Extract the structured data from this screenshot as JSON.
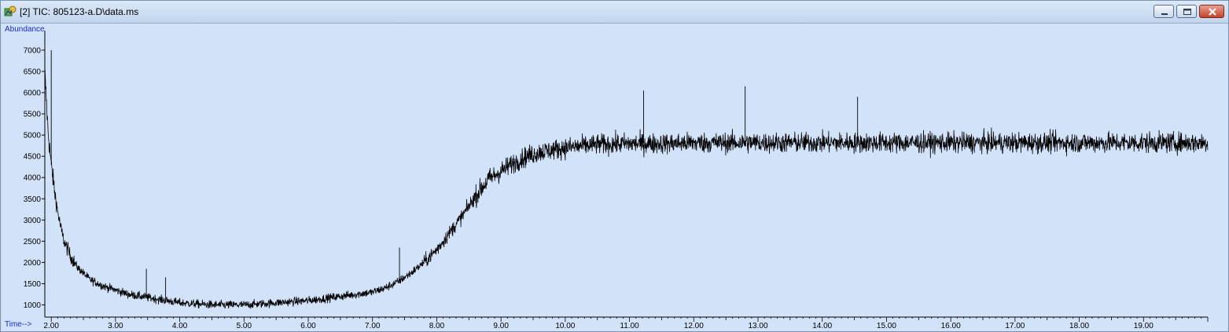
{
  "window": {
    "title": "[2] TIC: 805123-a.D\\data.ms",
    "icon": "chromatogram-icon",
    "controls": {
      "minimize": "minimize-icon",
      "maximize": "maximize-icon",
      "close": "close-icon"
    }
  },
  "colors": {
    "plot_background": "#d2e2f9",
    "trace": "#000000",
    "axis_unit_text": "#1a2ec8"
  },
  "chart_data": {
    "type": "line",
    "ylabel": "Abundance",
    "xlabel": "Time-->",
    "xlim": [
      1.9,
      20.0
    ],
    "ylim": [
      750,
      7350
    ],
    "x_ticks": [
      "2.00",
      "3.00",
      "4.00",
      "5.00",
      "6.00",
      "7.00",
      "8.00",
      "9.00",
      "10.00",
      "11.00",
      "12.00",
      "13.00",
      "14.00",
      "15.00",
      "16.00",
      "17.00",
      "18.00",
      "19.00"
    ],
    "y_ticks": [
      "1000",
      "1500",
      "2000",
      "2500",
      "3000",
      "3500",
      "4000",
      "4500",
      "5000",
      "5500",
      "6000",
      "6500",
      "7000"
    ],
    "grid": false,
    "series": [
      {
        "x": [
          1.9,
          1.95,
          2.0,
          2.05,
          2.1,
          2.15,
          2.2,
          2.3,
          2.4,
          2.5,
          2.6,
          2.8,
          3.0,
          3.2,
          3.4,
          3.6,
          3.8,
          4.0,
          4.5,
          5.0,
          5.5,
          6.0,
          6.5,
          7.0,
          7.2,
          7.4,
          7.6,
          7.8,
          8.0,
          8.2,
          8.4,
          8.6,
          8.8,
          9.0,
          9.2,
          9.4,
          9.6,
          9.8,
          10.0,
          10.5,
          11.0,
          11.5,
          12.0,
          12.5,
          13.0,
          13.5,
          14.0,
          14.5,
          15.0,
          15.5,
          16.0,
          16.5,
          17.0,
          17.5,
          18.0,
          18.5,
          19.0,
          19.5,
          20.0
        ],
        "y": [
          6500,
          5100,
          4300,
          3700,
          3200,
          2800,
          2500,
          2150,
          1900,
          1750,
          1600,
          1450,
          1350,
          1250,
          1200,
          1150,
          1100,
          1050,
          1000,
          1000,
          1050,
          1100,
          1200,
          1300,
          1400,
          1550,
          1750,
          2000,
          2300,
          2700,
          3100,
          3550,
          3950,
          4150,
          4350,
          4500,
          4600,
          4650,
          4700,
          4780,
          4800,
          4800,
          4820,
          4820,
          4820,
          4820,
          4820,
          4820,
          4820,
          4820,
          4820,
          4820,
          4820,
          4820,
          4820,
          4820,
          4820,
          4820,
          4820
        ]
      }
    ],
    "spikes": [
      {
        "x": 2.0,
        "y": 7000
      },
      {
        "x": 3.48,
        "y": 1850
      },
      {
        "x": 3.78,
        "y": 1650
      },
      {
        "x": 7.42,
        "y": 2350
      },
      {
        "x": 11.22,
        "y": 6050
      },
      {
        "x": 12.8,
        "y": 6150
      },
      {
        "x": 14.55,
        "y": 5900
      }
    ]
  }
}
